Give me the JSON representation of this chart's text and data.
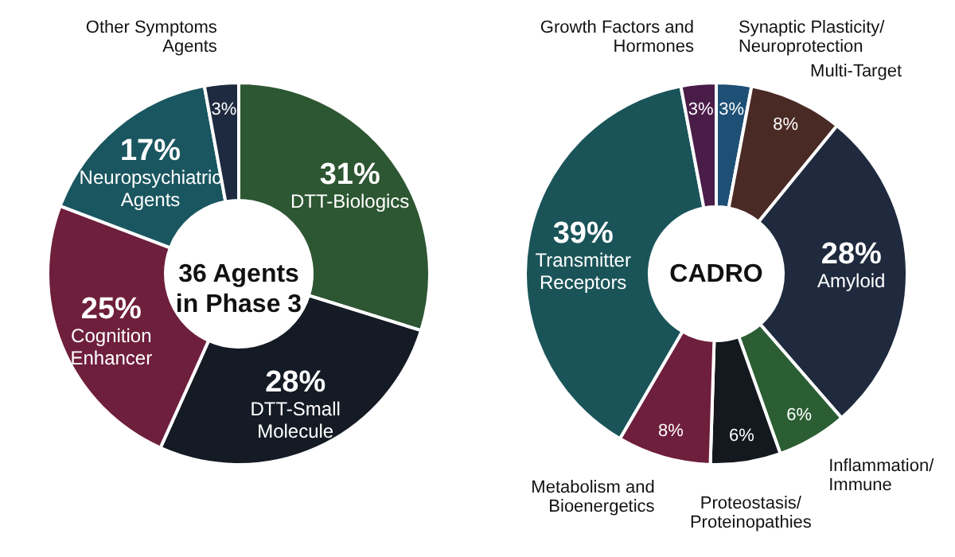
{
  "chart_data": [
    {
      "type": "donut",
      "title": "36 Agents in Phase 3",
      "categories": [
        "DTT-Biologics",
        "DTT-Small Molecule",
        "Cognition Enhancer",
        "Neuropsychiatric Agents",
        "Other Symptoms Agents"
      ],
      "values": [
        31,
        28,
        25,
        17,
        3
      ],
      "colors": [
        "#2d5632",
        "#151b25",
        "#6e1f3c",
        "#1a5660",
        "#1e2a40"
      ],
      "value_labels": [
        "31%",
        "28%",
        "25%",
        "17%",
        "3%"
      ]
    },
    {
      "type": "donut",
      "title": "CADRO",
      "categories": [
        "Synaptic Plasticity/Neuroprotection",
        "Multi-Target",
        "Amyloid",
        "Inflammation/Immune",
        "Proteostasis/Proteinopathies",
        "Metabolism and Bioenergetics",
        "Transmitter Receptors",
        "Growth Factors and Hormones"
      ],
      "values": [
        3,
        8,
        28,
        6,
        6,
        8,
        39,
        3
      ],
      "colors": [
        "#1e5076",
        "#4a2a24",
        "#1f2a3e",
        "#2c5e33",
        "#14181f",
        "#6e1f3c",
        "#1a5459",
        "#4a1c48"
      ],
      "value_labels": [
        "3%",
        "8%",
        "28%",
        "6%",
        "6%",
        "8%",
        "39%",
        "3%"
      ]
    }
  ]
}
